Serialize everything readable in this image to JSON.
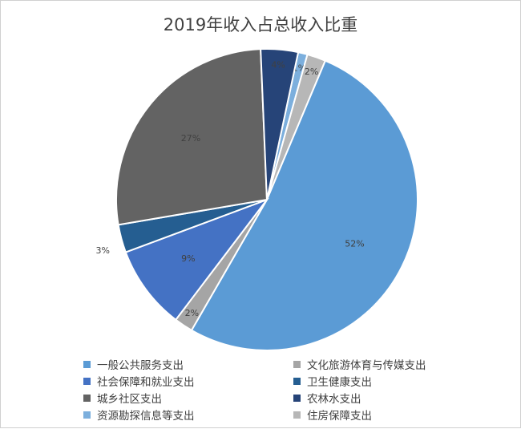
{
  "chart_data": {
    "type": "pie",
    "title": "2019年收入占总收入比重",
    "slices": [
      {
        "label": "一般公共服务支出",
        "value": 52,
        "color": "#5b9bd5",
        "display": "52%"
      },
      {
        "label": "文化旅游体育与传媒支出",
        "value": 2,
        "color": "#a5a5a5",
        "display": "2%"
      },
      {
        "label": "社会保障和就业支出",
        "value": 9,
        "color": "#4472c4",
        "display": "9%"
      },
      {
        "label": "卫生健康支出",
        "value": 3,
        "color": "#255e91",
        "display": "3%"
      },
      {
        "label": "城乡社区支出",
        "value": 27,
        "color": "#636363",
        "display": "27%"
      },
      {
        "label": "农林水支出",
        "value": 4,
        "color": "#264478",
        "display": "4%"
      },
      {
        "label": "资源勘探信息等支出",
        "value": 1,
        "color": "#7cafdd",
        "display": "1%"
      },
      {
        "label": "住房保障支出",
        "value": 2,
        "color": "#b7b7b7",
        "display": "2%"
      }
    ],
    "legend_position": "bottom"
  }
}
